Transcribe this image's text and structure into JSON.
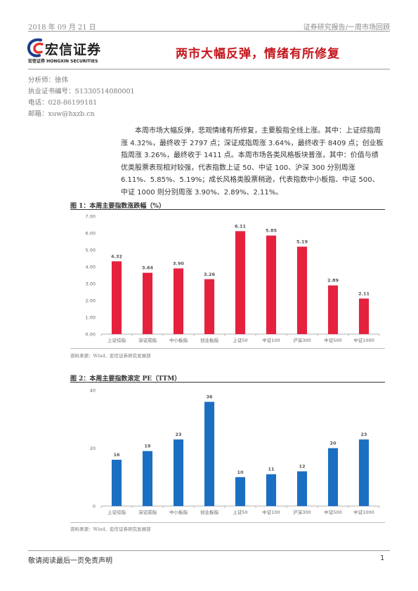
{
  "header": {
    "date": "2018 年 09 月 21 日",
    "report_type": "证券研究报告/一周市场回顾"
  },
  "logo": {
    "name_cn": "宏信证券",
    "name_en": "宏信证券 HONGXIN SECURITIES",
    "colors": [
      "#1f3d8c",
      "#e3342f"
    ]
  },
  "title": "两市大幅反弹，情绪有所修复",
  "analyst": {
    "name": "分析师：徐伟",
    "license": "执业证书编号：S1330514080001",
    "phone": "电话：028-86199181",
    "email": "邮箱：xuw@hxzb.cn"
  },
  "summary": "本周市场大幅反弹，悲观情绪有所修复，主要股指全线上涨。其中：上证综指周涨 4.32%，最终收于 2797 点；深证成指周涨 3.64%，最终收于 8409 点；创业板指周涨 3.26%，最终收于 1411 点。本周市场各类风格板块普涨，其中：价值与绩优类股票表现相对较强，代表指数上证 50、中证 100、沪深 300 分别周涨 6.11%、5.85%、5.19%；成长风格类股票稍逊，代表指数中小板指、中证 500、中证 1000 则分别周涨 3.90%、2.89%、2.11%。",
  "figures": [
    {
      "title": "图 1：本周主要指数涨跌幅（%）",
      "source": "资料来源：Wind、宏信证券研究发展部"
    },
    {
      "title": "图 2：本周主要指数滚定 PE（TTM）",
      "source": "资料来源：Wind、宏信证券研究发展部"
    }
  ],
  "chart_data": [
    {
      "type": "bar",
      "title": "图 1：本周主要指数涨跌幅（%）",
      "categories": [
        "上证综指",
        "深证成指",
        "中小板指",
        "创业板指",
        "上证50",
        "中证100",
        "沪深300",
        "中证500",
        "中证1000"
      ],
      "values": [
        4.32,
        3.64,
        3.9,
        3.26,
        6.11,
        5.85,
        5.19,
        2.89,
        2.11
      ],
      "value_labels": [
        "4.32",
        "3.64",
        "3.90",
        "3.26",
        "6.11",
        "5.85",
        "5.19",
        "2.89",
        "2.11"
      ],
      "ylim": [
        0,
        7
      ],
      "yticks": [
        "0.00",
        "1.00",
        "2.00",
        "3.00",
        "4.00",
        "5.00",
        "6.00",
        "7.00"
      ],
      "color": "#e5213e",
      "grid": false
    },
    {
      "type": "bar",
      "title": "图 2：本周主要指数滚定 PE（TTM）",
      "categories": [
        "上证综指",
        "深证成指",
        "中小板指",
        "创业板指",
        "上证50",
        "中证100",
        "沪深300",
        "中证500",
        "中证1000"
      ],
      "values": [
        16,
        19,
        23,
        36,
        10,
        11,
        12,
        20,
        23
      ],
      "value_labels": [
        "16",
        "19",
        "23",
        "36",
        "10",
        "11",
        "12",
        "20",
        "23"
      ],
      "ylim": [
        0,
        40
      ],
      "yticks": [
        "0",
        "20",
        "40"
      ],
      "color": "#1b6fc2",
      "grid": false
    }
  ],
  "footer": {
    "disclaimer": "敬请阅读最后一页免责声明",
    "page": "1"
  }
}
